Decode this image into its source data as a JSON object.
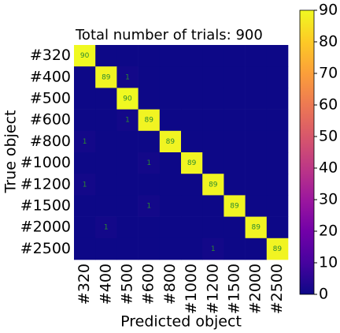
{
  "chart_data": {
    "type": "heatmap",
    "title": "Total number of trials: 900",
    "x_label": "Predicted object",
    "y_label": "True object",
    "categories": [
      "#320",
      "#400",
      "#500",
      "#600",
      "#800",
      "#1000",
      "#1200",
      "#1500",
      "#2000",
      "#2500"
    ],
    "values": [
      [
        90,
        0,
        0,
        0,
        0,
        0,
        0,
        0,
        0,
        0
      ],
      [
        0,
        89,
        1,
        0,
        0,
        0,
        0,
        0,
        0,
        0
      ],
      [
        0,
        0,
        90,
        0,
        0,
        0,
        0,
        0,
        0,
        0
      ],
      [
        0,
        0,
        1,
        89,
        0,
        0,
        0,
        0,
        0,
        0
      ],
      [
        1,
        0,
        0,
        0,
        89,
        0,
        0,
        0,
        0,
        0
      ],
      [
        0,
        0,
        0,
        1,
        0,
        89,
        0,
        0,
        0,
        0
      ],
      [
        1,
        0,
        0,
        0,
        0,
        0,
        89,
        0,
        0,
        0
      ],
      [
        0,
        0,
        0,
        1,
        0,
        0,
        0,
        89,
        0,
        0
      ],
      [
        0,
        1,
        0,
        0,
        0,
        0,
        0,
        0,
        89,
        0
      ],
      [
        0,
        0,
        0,
        0,
        0,
        0,
        1,
        0,
        0,
        89
      ]
    ],
    "colormap": [
      "#0d0887",
      "#46039f",
      "#7201a8",
      "#9c179e",
      "#bd3786",
      "#d8576b",
      "#ed7953",
      "#fb9f3a",
      "#fdca26",
      "#f0f921"
    ],
    "clim": [
      0,
      90
    ],
    "colorbar_ticks": [
      0,
      10,
      20,
      30,
      40,
      50,
      60,
      70,
      80,
      90
    ],
    "annotation_color": "#2e8b2e"
  }
}
